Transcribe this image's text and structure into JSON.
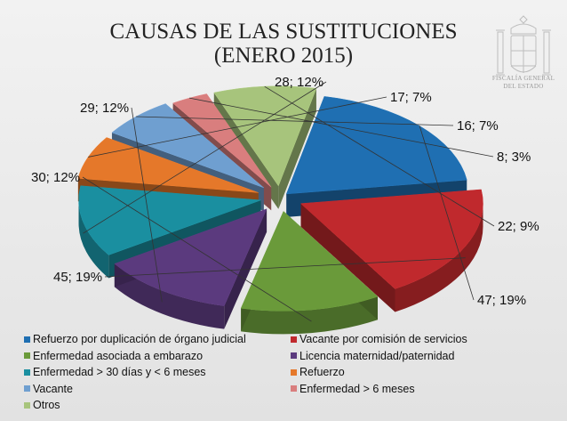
{
  "title_line1": "CAUSAS DE LAS SUSTITUCIONES",
  "title_line2": "(ENERO 2015)",
  "logo_text_line1": "FISCALÍA GENERAL",
  "logo_text_line2": "DEL ESTADO",
  "chart_data": {
    "type": "pie",
    "title": "CAUSAS DE LAS SUSTITUCIONES (ENERO 2015)",
    "legend_position": "bottom",
    "slices": [
      {
        "name": "Refuerzo por duplicación de órgano judicial",
        "value": 47,
        "label": "47; 19%",
        "color": "#1f6fb2"
      },
      {
        "name": "Vacante por comisión de servicios",
        "value": 45,
        "label": "45; 19%",
        "color": "#c0292d"
      },
      {
        "name": "Enfermedad asociada a embarazo",
        "value": 30,
        "label": "30; 12%",
        "color": "#6a9a3a"
      },
      {
        "name": "Licencia maternidad/paternidad",
        "value": 29,
        "label": "29; 12%",
        "color": "#5b3a7e"
      },
      {
        "name": "Enfermedad > 30 días y < 6 meses",
        "value": 28,
        "label": "28; 12%",
        "color": "#1a8fa0"
      },
      {
        "name": "Refuerzo",
        "value": 17,
        "label": "17; 7%",
        "color": "#e5782a"
      },
      {
        "name": "Vacante",
        "value": 16,
        "label": "16; 7%",
        "color": "#6f9fd0"
      },
      {
        "name": "Enfermedad > 6 meses",
        "value": 8,
        "label": "8; 3%",
        "color": "#d97e7e"
      },
      {
        "name": "Otros",
        "value": 22,
        "label": "22; 9%",
        "color": "#a7c47c"
      }
    ]
  }
}
